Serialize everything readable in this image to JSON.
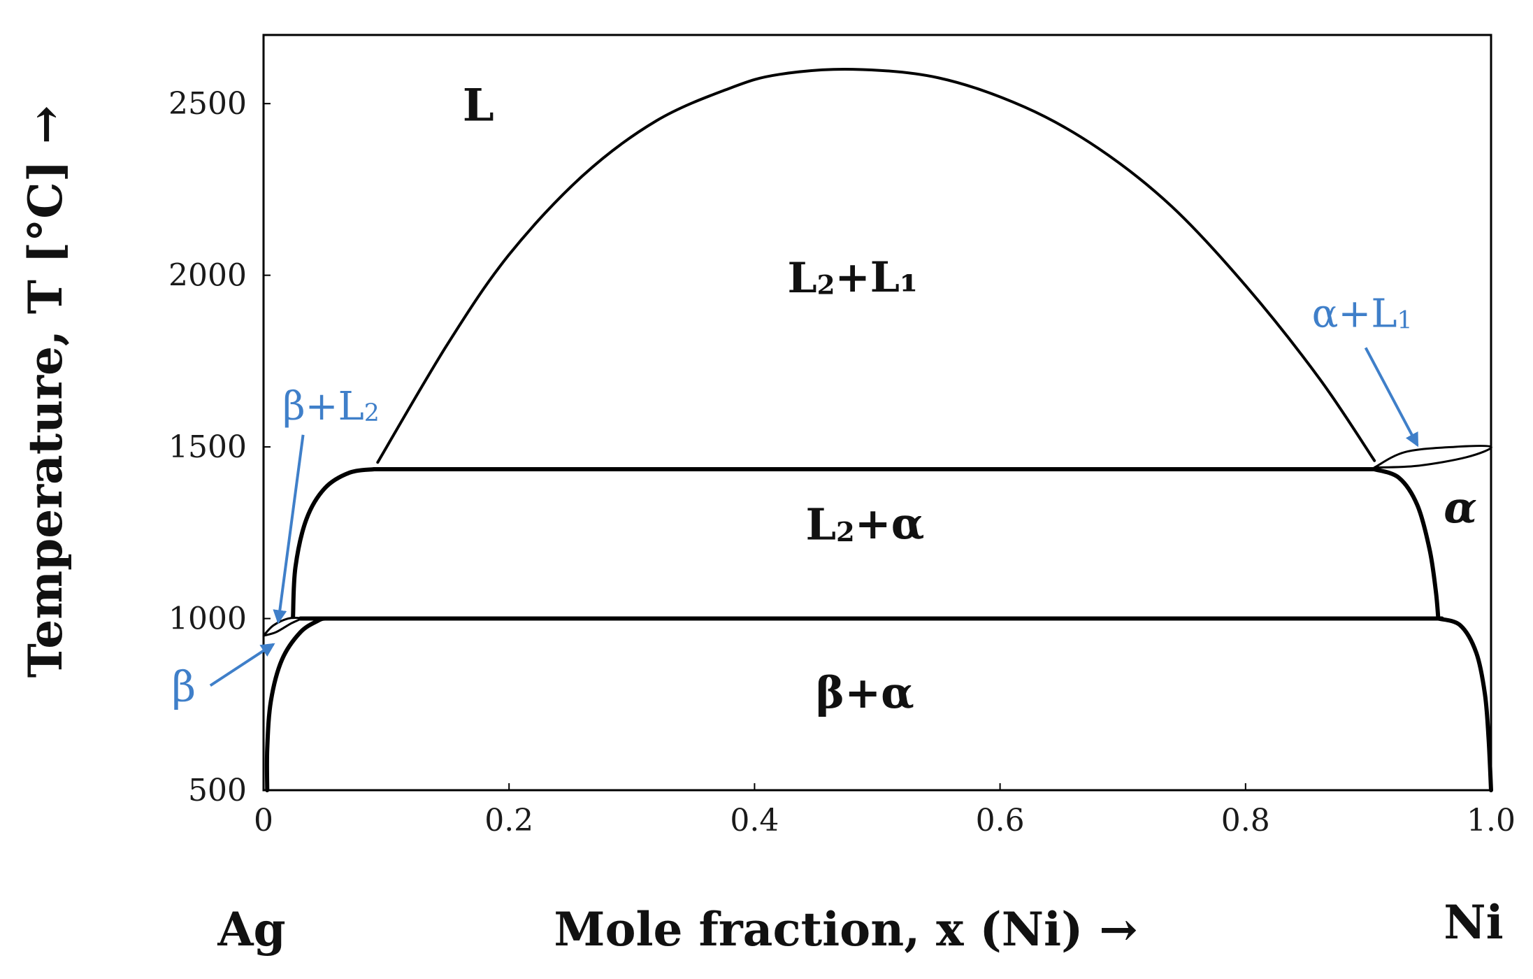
{
  "chart_data": {
    "type": "phase-diagram",
    "xlabel": "Mole fraction, x (Ni) →",
    "ylabel": "Temperature, T [°C] →",
    "xlim": [
      0,
      1.0
    ],
    "ylim": [
      500,
      2700
    ],
    "x_ticks": [
      {
        "value": 0,
        "label": "0"
      },
      {
        "value": 0.2,
        "label": "0.2"
      },
      {
        "value": 0.4,
        "label": "0.4"
      },
      {
        "value": 0.6,
        "label": "0.6"
      },
      {
        "value": 0.8,
        "label": "0.8"
      },
      {
        "value": 1.0,
        "label": "1.0"
      }
    ],
    "y_ticks": [
      {
        "value": 500,
        "label": "500"
      },
      {
        "value": 1000,
        "label": "1000"
      },
      {
        "value": 1500,
        "label": "1500"
      },
      {
        "value": 2000,
        "label": "2000"
      },
      {
        "value": 2500,
        "label": "2500"
      }
    ],
    "endpoints": {
      "left": "Ag",
      "right": "Ni"
    },
    "boundaries": [
      {
        "name": "miscibility-gap-dome",
        "points": [
          [
            0.093,
            1455
          ],
          [
            0.15,
            1800
          ],
          [
            0.2,
            2060
          ],
          [
            0.26,
            2290
          ],
          [
            0.32,
            2450
          ],
          [
            0.38,
            2545
          ],
          [
            0.42,
            2585
          ],
          [
            0.48,
            2600
          ],
          [
            0.55,
            2575
          ],
          [
            0.62,
            2490
          ],
          [
            0.68,
            2370
          ],
          [
            0.74,
            2200
          ],
          [
            0.8,
            1970
          ],
          [
            0.86,
            1700
          ],
          [
            0.905,
            1460
          ]
        ]
      },
      {
        "name": "monotectic-line",
        "points": [
          [
            0.09,
            1435
          ],
          [
            0.905,
            1435
          ]
        ]
      },
      {
        "name": "eutectic-line",
        "points": [
          [
            0.03,
            1000
          ],
          [
            0.96,
            1000
          ]
        ]
      },
      {
        "name": "l2-alpha-left-boundary",
        "points": [
          [
            0.024,
            1005
          ],
          [
            0.026,
            1150
          ],
          [
            0.035,
            1290
          ],
          [
            0.05,
            1380
          ],
          [
            0.07,
            1425
          ],
          [
            0.09,
            1435
          ]
        ]
      },
      {
        "name": "alpha-solvus-upper",
        "points": [
          [
            0.905,
            1435
          ],
          [
            0.925,
            1410
          ],
          [
            0.94,
            1330
          ],
          [
            0.95,
            1200
          ],
          [
            0.955,
            1080
          ],
          [
            0.957,
            1000
          ]
        ]
      },
      {
        "name": "beta-alpha-left-boundary",
        "points": [
          [
            0.003,
            500
          ],
          [
            0.003,
            620
          ],
          [
            0.006,
            760
          ],
          [
            0.015,
            880
          ],
          [
            0.03,
            960
          ],
          [
            0.045,
            995
          ],
          [
            0.05,
            1000
          ]
        ]
      },
      {
        "name": "alpha-solvus-lower",
        "points": [
          [
            0.957,
            1000
          ],
          [
            0.975,
            980
          ],
          [
            0.988,
            900
          ],
          [
            0.995,
            780
          ],
          [
            0.998,
            650
          ],
          [
            1.0,
            500
          ]
        ]
      },
      {
        "name": "beta-liquid-lens",
        "points": [
          [
            0.0,
            950
          ],
          [
            0.008,
            980
          ],
          [
            0.02,
            1000
          ],
          [
            0.03,
            1000
          ],
          [
            0.022,
            985
          ],
          [
            0.01,
            960
          ],
          [
            0.0,
            950
          ]
        ]
      },
      {
        "name": "alpha-liquid-lens",
        "points": [
          [
            0.905,
            1440
          ],
          [
            0.93,
            1485
          ],
          [
            0.97,
            1500
          ],
          [
            1.0,
            1500
          ],
          [
            0.98,
            1470
          ],
          [
            0.94,
            1445
          ],
          [
            0.905,
            1440
          ]
        ]
      }
    ],
    "region_labels": [
      {
        "text": "L",
        "x": 0.175,
        "y": 2450
      },
      {
        "text": "L₂+L₁",
        "x": 0.48,
        "y": 1950
      },
      {
        "text": "L₂+α",
        "x": 0.49,
        "y": 1230
      },
      {
        "text": "α",
        "x": 0.975,
        "y": 1280
      },
      {
        "text": "β+α",
        "x": 0.49,
        "y": 740
      }
    ],
    "annotations": [
      {
        "text": "β+L₂",
        "label_x": 0.055,
        "label_y": 1580,
        "target_x": 0.012,
        "target_y": 990
      },
      {
        "text": "β",
        "label_x": -0.065,
        "label_y": 760,
        "target_x": 0.008,
        "target_y": 925
      },
      {
        "text": "α+L₁",
        "label_x": 0.895,
        "label_y": 1850,
        "target_x": 0.94,
        "target_y": 1505
      }
    ],
    "colors": {
      "annotation": "#3f7fc9",
      "lines": "#000000",
      "text": "#111111"
    }
  }
}
